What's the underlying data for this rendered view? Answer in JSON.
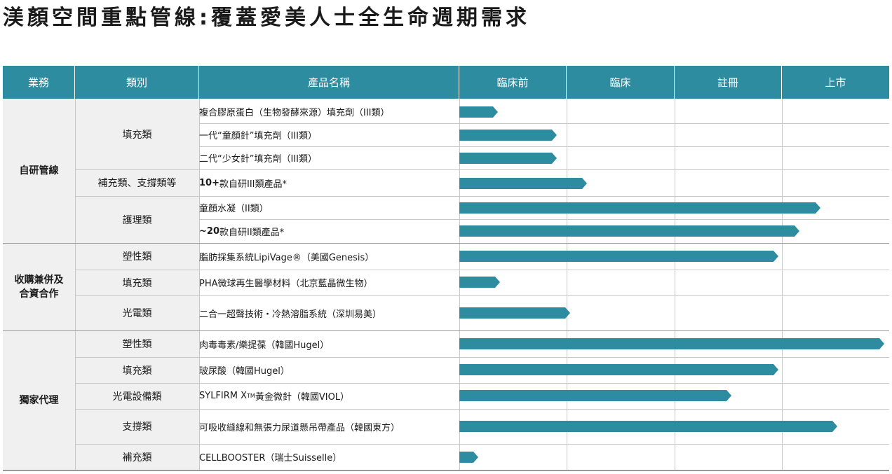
{
  "title": "渼顏空間重點管線:覆蓋愛美人士全生命週期需求",
  "colors": {
    "header": "#2e8ca0",
    "bar": "#2e8ca0",
    "left_bg": "#f0f0f0"
  },
  "headers": {
    "business": "業務",
    "category": "類別",
    "product": "產品名稱",
    "preclinical": "臨床前",
    "clinical": "臨床",
    "registration": "註冊",
    "market": "上市"
  },
  "businesses": [
    {
      "label": "自研管線"
    },
    {
      "line1": "收購兼併及",
      "line2": "合資合作"
    },
    {
      "label": "獨家代理"
    }
  ],
  "categories": [
    "填充類",
    "補充類、支撐類等",
    "護理類",
    "塑性類",
    "填充類",
    "光電類",
    "塑性類",
    "填充類",
    "光電設備類",
    "支撐類",
    "補充類"
  ],
  "products": [
    {
      "name": "複合膠原蛋白（生物發酵來源）填充劑（III類）",
      "progress": 0.09
    },
    {
      "name": "一代“童顏針”填充劑（III類）",
      "progress": 0.23
    },
    {
      "name": "二代“少女針”填充劑（III類）",
      "progress": 0.23
    },
    {
      "bold": "10+",
      "rest": "款自研III類產品*",
      "progress": 0.3
    },
    {
      "name": "童顏水凝（II類）",
      "progress": 0.85
    },
    {
      "bold": "~20",
      "rest": "款自研II類產品*",
      "progress": 0.8
    },
    {
      "name": "脂肪採集系統LipiVage®（美國Genesis）",
      "progress": 0.75
    },
    {
      "name": "PHA微球再生醫學材料（北京藍晶微生物）",
      "progress": 0.095
    },
    {
      "name": "二合一超聲技術・冷熱溶脂系統（深圳易美）",
      "progress": 0.26
    },
    {
      "name": "肉毒毒素/樂提葆（韓國Hugel）",
      "progress": 1.0
    },
    {
      "name": "玻尿酸（韓國Hugel）",
      "progress": 0.75
    },
    {
      "pre": "SYLFIRM X",
      "sup": "TM",
      "rest": "黃金微針（韓國VIOL）",
      "progress": 0.64
    },
    {
      "name": "可吸收縫線和無張力尿道懸吊帶產品（韓國東方）",
      "progress": 0.89
    },
    {
      "name": "CELLBOOSTER（瑞士Suisselle）",
      "progress": 0.045
    }
  ]
}
